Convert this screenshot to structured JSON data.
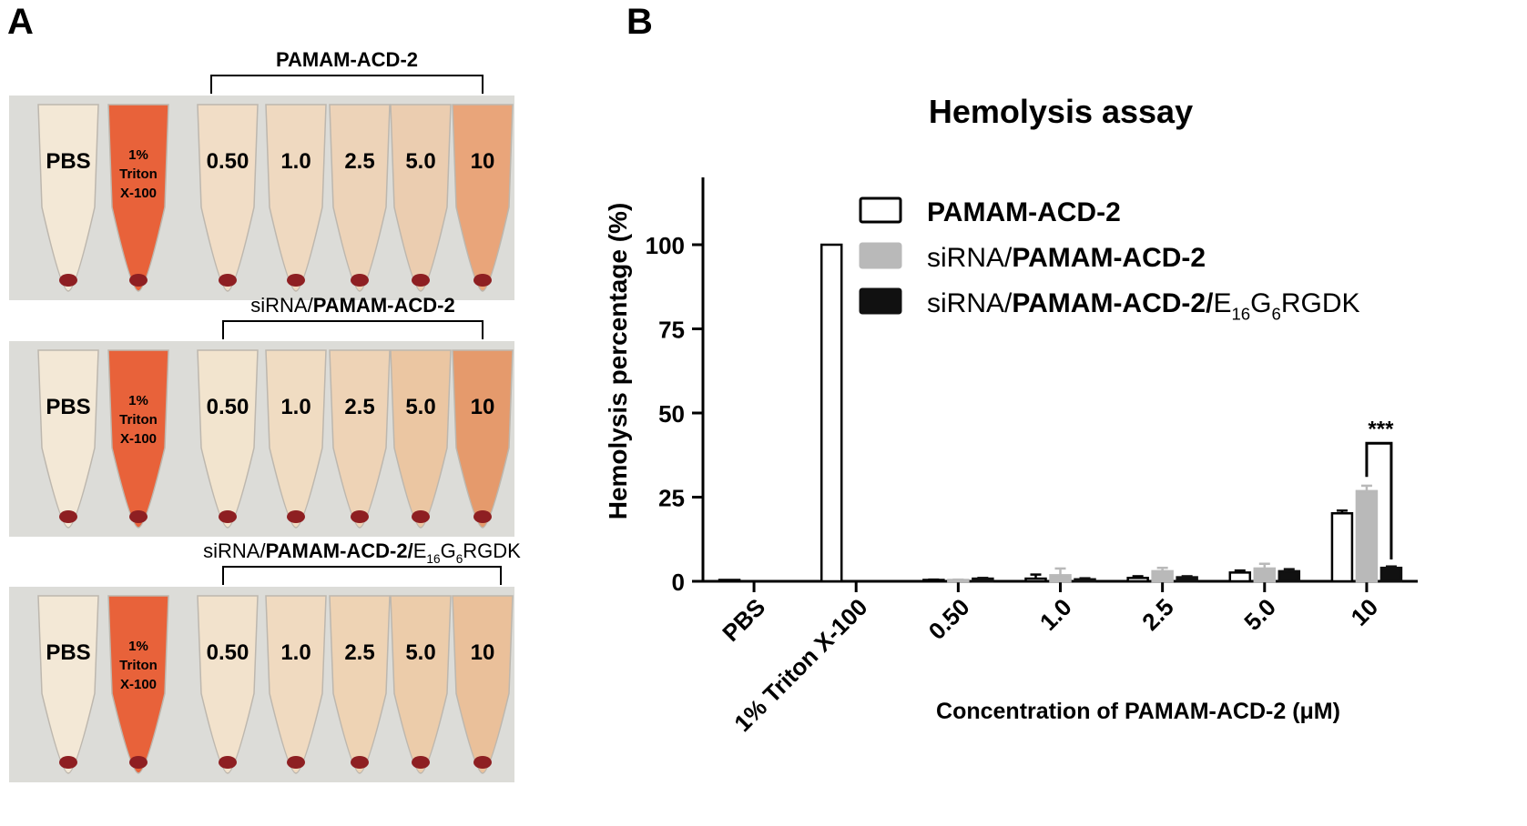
{
  "panel_labels": {
    "a": "A",
    "b": "B"
  },
  "panel_a": {
    "rows": [
      {
        "title_plain": "",
        "title_bold": "PAMAM-ACD-2",
        "title_suffix": "",
        "control_labels": [
          "PBS",
          "1%",
          "Triton",
          "X-100"
        ],
        "concentrations": [
          "0.50",
          "1.0",
          "2.5",
          "5.0",
          "10"
        ],
        "tube_tints": [
          "#f1ddc6",
          "#efd9c0",
          "#edd3b8",
          "#ebcdb0",
          "#e9a57a"
        ]
      },
      {
        "title_plain": "siRNA/",
        "title_bold": "PAMAM-ACD-2",
        "title_suffix": "",
        "control_labels": [
          "PBS",
          "1%",
          "Triton",
          "X-100"
        ],
        "concentrations": [
          "0.50",
          "1.0",
          "2.5",
          "5.0",
          "10"
        ],
        "tube_tints": [
          "#f2e4ce",
          "#f0dcc2",
          "#eed3b6",
          "#ebc6a2",
          "#e59a6c"
        ]
      },
      {
        "title_plain": "siRNA/",
        "title_bold": "PAMAM-ACD-2/",
        "title_suffix": "E16G6RGDK",
        "control_labels": [
          "PBS",
          "1%",
          "Triton",
          "X-100"
        ],
        "concentrations": [
          "0.50",
          "1.0",
          "2.5",
          "5.0",
          "10"
        ],
        "tube_tints": [
          "#f2e2cc",
          "#f0dac0",
          "#eed3b4",
          "#ecccaa",
          "#eac09a"
        ]
      }
    ],
    "colors": {
      "lysed": "#e8623a",
      "clear": "#f3e8d6",
      "pellet": "#8e1f22"
    }
  },
  "chart_data": {
    "type": "bar",
    "title": "Hemolysis assay",
    "xlabel": "Concentration of PAMAM-ACD-2 (μM)",
    "ylabel": "Hemolysis percentage (%)",
    "ylim": [
      0,
      120
    ],
    "yticks": [
      0,
      25,
      50,
      75,
      100
    ],
    "categories": [
      "PBS",
      "1% Triton X-100",
      "0.50",
      "1.0",
      "2.5",
      "5.0",
      "10"
    ],
    "series": [
      {
        "name": "PAMAM-ACD-2",
        "fill": "#ffffff",
        "stroke": "#000000",
        "values": [
          0,
          100,
          0.3,
          0.8,
          1.0,
          2.6,
          20.2
        ],
        "errors": [
          0,
          0,
          0.2,
          1.2,
          0.5,
          0.6,
          0.8
        ]
      },
      {
        "name": "siRNA/PAMAM-ACD-2",
        "fill": "#b9b9b9",
        "stroke": "#b9b9b9",
        "values": [
          null,
          null,
          0.3,
          1.8,
          3.0,
          3.8,
          26.8
        ],
        "errors": [
          0,
          0,
          0.2,
          2.0,
          1.0,
          1.4,
          1.6
        ]
      },
      {
        "name": "siRNA/PAMAM-ACD-2/E16G6RGDK",
        "fill": "#111111",
        "stroke": "#111111",
        "values": [
          null,
          null,
          0.8,
          0.6,
          1.2,
          3.0,
          4.0
        ],
        "errors": [
          0,
          0,
          0.2,
          0.3,
          0.3,
          0.6,
          0.4
        ]
      }
    ],
    "legend": {
      "position": "top-right",
      "entries": [
        {
          "plain_before": "",
          "bold": "PAMAM-ACD-2",
          "plain_after": ""
        },
        {
          "plain_before": "siRNA/",
          "bold": "PAMAM-ACD-2",
          "plain_after": ""
        },
        {
          "plain_before": "siRNA/",
          "bold": "PAMAM-ACD-2/",
          "plain_after": "E16G6RGDK"
        }
      ]
    },
    "annotation": {
      "text": "***",
      "category": "10",
      "between": [
        1,
        2
      ]
    },
    "grid": false
  }
}
